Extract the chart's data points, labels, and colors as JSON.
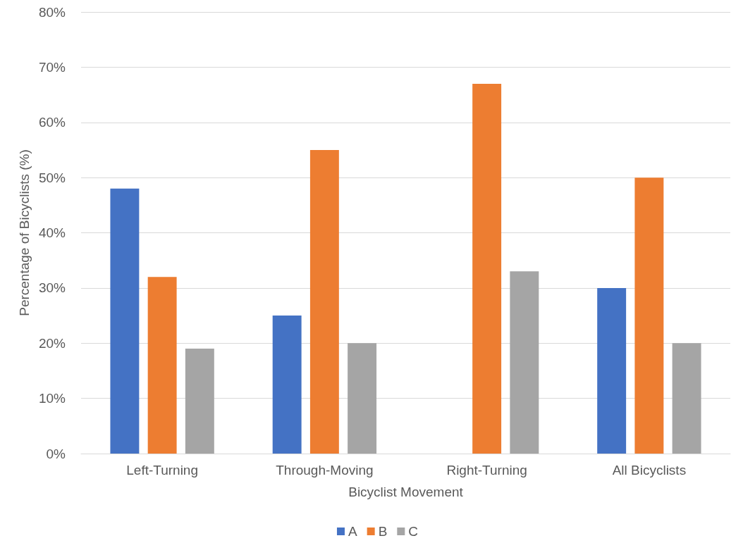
{
  "chart_data": {
    "type": "bar",
    "xlabel": "Bicyclist Movement",
    "ylabel": "Percentage of Bicyclists (%)",
    "categories": [
      "Left-Turning",
      "Through-Moving",
      "Right-Turning",
      "All Bicyclists"
    ],
    "series": [
      {
        "name": "A",
        "color": "#4472c4",
        "values": [
          48,
          25,
          0,
          30
        ]
      },
      {
        "name": "B",
        "color": "#ed7d31",
        "values": [
          32,
          55,
          67,
          50
        ]
      },
      {
        "name": "C",
        "color": "#a5a5a5",
        "values": [
          19,
          20,
          33,
          20
        ]
      }
    ],
    "ylim": [
      0,
      80
    ],
    "yticks": [
      {
        "value": 0,
        "label": "0%"
      },
      {
        "value": 10,
        "label": "10%"
      },
      {
        "value": 20,
        "label": "20%"
      },
      {
        "value": 30,
        "label": "30%"
      },
      {
        "value": 40,
        "label": "40%"
      },
      {
        "value": 50,
        "label": "50%"
      },
      {
        "value": 60,
        "label": "60%"
      },
      {
        "value": 70,
        "label": "70%"
      },
      {
        "value": 80,
        "label": "80%"
      }
    ],
    "grid": "y",
    "legend": "bottom"
  }
}
